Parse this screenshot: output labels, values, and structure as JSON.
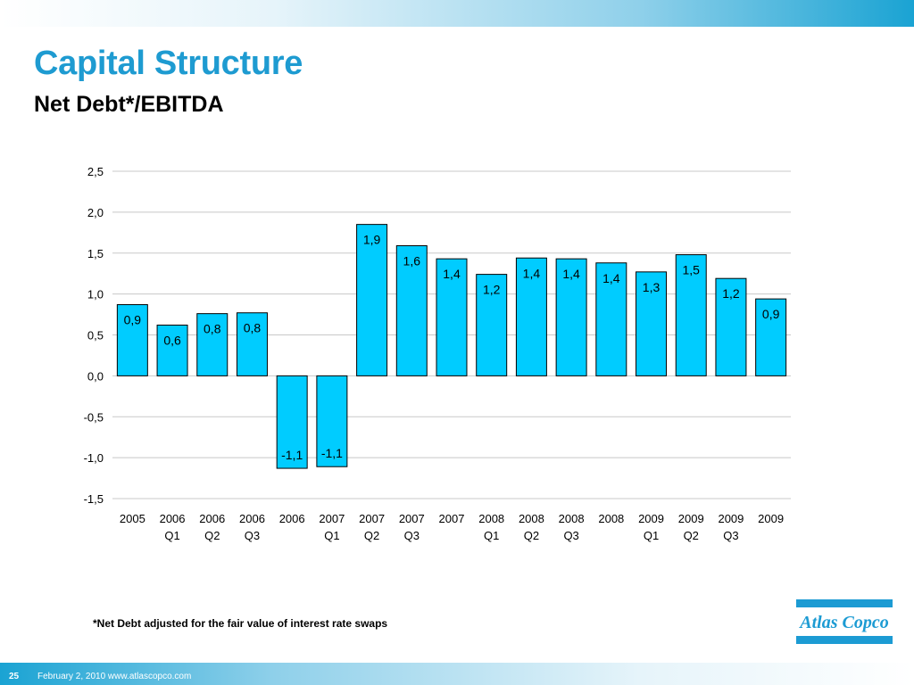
{
  "slide": {
    "title": "Capital Structure",
    "subtitle": "Net Debt*/EBITDA",
    "footnote": "*Net Debt adjusted for the fair value of interest rate swaps",
    "page_number": "25",
    "footer": "February 2, 2010  www.atlascopco.com",
    "logo_text": "Atlas Copco"
  },
  "colors": {
    "title": "#1e9bd1",
    "bar_fill": "#00ccff",
    "bar_stroke": "#000000",
    "gridline": "#c8c8c8",
    "brand_blue": "#1c9bd3"
  },
  "chart_data": {
    "type": "bar",
    "title": "",
    "xlabel": "",
    "ylabel": "",
    "ylim": [
      -1.5,
      2.5
    ],
    "yticks": [
      2.5,
      2.0,
      1.5,
      1.0,
      0.5,
      0.0,
      -0.5,
      -1.0,
      -1.5
    ],
    "ytick_labels": [
      "2,5",
      "2,0",
      "1,5",
      "1,0",
      "0,5",
      "0,0",
      "-0,5",
      "-1,0",
      "-1,5"
    ],
    "grid": true,
    "legend": "none",
    "categories": [
      [
        "2005",
        ""
      ],
      [
        "2006",
        "Q1"
      ],
      [
        "2006",
        "Q2"
      ],
      [
        "2006",
        "Q3"
      ],
      [
        "2006",
        ""
      ],
      [
        "2007",
        "Q1"
      ],
      [
        "2007",
        "Q2"
      ],
      [
        "2007",
        "Q3"
      ],
      [
        "2007",
        ""
      ],
      [
        "2008",
        "Q1"
      ],
      [
        "2008",
        "Q2"
      ],
      [
        "2008",
        "Q3"
      ],
      [
        "2008",
        ""
      ],
      [
        "2009",
        "Q1"
      ],
      [
        "2009",
        "Q2"
      ],
      [
        "2009",
        "Q3"
      ],
      [
        "2009",
        ""
      ]
    ],
    "values": [
      0.87,
      0.62,
      0.76,
      0.77,
      -1.13,
      -1.11,
      1.85,
      1.59,
      1.43,
      1.24,
      1.44,
      1.43,
      1.38,
      1.27,
      1.48,
      1.19,
      0.94
    ],
    "data_labels": [
      "0,9",
      "0,6",
      "0,8",
      "0,8",
      "-1,1",
      "-1,1",
      "1,9",
      "1,6",
      "1,4",
      "1,2",
      "1,4",
      "1,4",
      "1,4",
      "1,3",
      "1,5",
      "1,2",
      "0,9"
    ]
  }
}
